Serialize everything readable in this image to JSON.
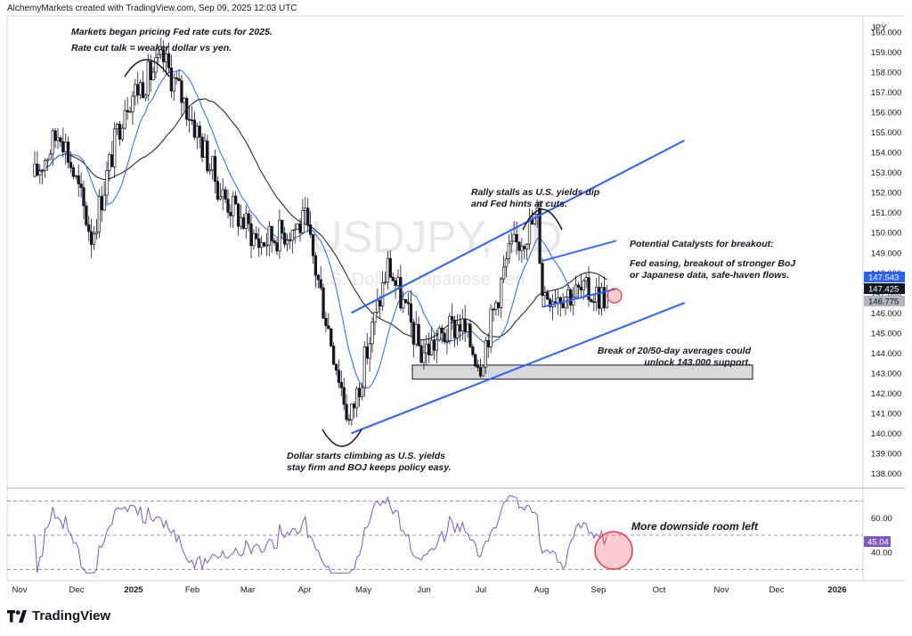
{
  "header": {
    "attribution": "AlchemyMarkets created with TradingView.com, Sep 09, 2025 12:03 UTC"
  },
  "brand": {
    "name": "TradingView"
  },
  "chart_data": {
    "type": "candlestick",
    "symbol_watermark": "USDJPY, 1D",
    "watermark_sub": "U.S. Dollar / Japanese Yen",
    "currency": "JPY",
    "ylim": [
      137.4,
      160.8
    ],
    "yticks": [
      138,
      139,
      140,
      141,
      142,
      143,
      144,
      145,
      146,
      147,
      148,
      149,
      150,
      151,
      152,
      153,
      154,
      155,
      156,
      157,
      158,
      159,
      160
    ],
    "price_labels": [
      {
        "value": "147.543",
        "color": "#2962ff",
        "text_color": "#ffffff"
      },
      {
        "value": "147.425",
        "color": "#131722",
        "text_color": "#ffffff"
      },
      {
        "value": "146.775",
        "color": "#b2b5be",
        "text_color": "#131722"
      }
    ],
    "x_ticks": [
      "Nov",
      "Dec",
      "2025",
      "Feb",
      "Mar",
      "Apr",
      "May",
      "Jun",
      "Jul",
      "Aug",
      "Sep",
      "Oct",
      "Nov",
      "Dec",
      "2026"
    ],
    "ohlc_approx_daily_close": [
      {
        "date": "2024-11-01",
        "close": 152.8
      },
      {
        "date": "2024-11-15",
        "close": 155.2
      },
      {
        "date": "2024-12-02",
        "close": 149.8
      },
      {
        "date": "2024-12-20",
        "close": 156.5
      },
      {
        "date": "2025-01-10",
        "close": 158.6
      },
      {
        "date": "2025-01-24",
        "close": 156.0
      },
      {
        "date": "2025-02-10",
        "close": 152.0
      },
      {
        "date": "2025-03-03",
        "close": 149.5
      },
      {
        "date": "2025-03-28",
        "close": 150.5
      },
      {
        "date": "2025-04-21",
        "close": 140.5
      },
      {
        "date": "2025-05-12",
        "close": 148.4
      },
      {
        "date": "2025-05-30",
        "close": 144.0
      },
      {
        "date": "2025-06-20",
        "close": 145.5
      },
      {
        "date": "2025-07-01",
        "close": 143.5
      },
      {
        "date": "2025-07-16",
        "close": 148.8
      },
      {
        "date": "2025-08-01",
        "close": 150.8
      },
      {
        "date": "2025-08-04",
        "close": 147.0
      },
      {
        "date": "2025-08-29",
        "close": 147.0
      },
      {
        "date": "2025-09-09",
        "close": 146.8
      }
    ],
    "series": [
      {
        "name": "20-day MA",
        "color": "#2962ff"
      },
      {
        "name": "50-day MA",
        "color": "#131722"
      }
    ],
    "support_zone": {
      "low": 142.7,
      "high": 143.4
    },
    "channel": {
      "upper": [
        [
          "2025-04-22",
          146.0
        ],
        [
          "2025-10-20",
          154.6
        ]
      ],
      "lower": [
        [
          "2025-04-22",
          140.0
        ],
        [
          "2025-10-20",
          146.5
        ]
      ]
    },
    "annotations": {
      "a1_line1": "Markets began pricing Fed rate cuts for 2025.",
      "a1_line2": "Rate cut talk = weaker dollar vs yen.",
      "a2_line1": "Rally stalls as U.S. yields dip",
      "a2_line2": "and Fed hints at cuts.",
      "a3_line1": "Potential Catalysts for breakout:",
      "a4_line1": "Fed easing, breakout of stronger BoJ",
      "a4_line2": "or Japanese data, safe-haven flows.",
      "a5_line1": "Break of 20/50-day averages could",
      "a5_line2": "unlock 143.000 support.",
      "a6_line1": "Dollar starts climbing as U.S. yields",
      "a6_line2": "stay firm and BOJ keeps policy easy.",
      "a7_line1": "More downside room left"
    }
  },
  "rsi": {
    "name": "RSI",
    "current": "45.04",
    "ticks": [
      "60.00",
      "40.00"
    ],
    "levels": [
      70,
      50,
      30
    ],
    "color": "#7e57c2",
    "ylim": [
      26,
      76
    ]
  }
}
